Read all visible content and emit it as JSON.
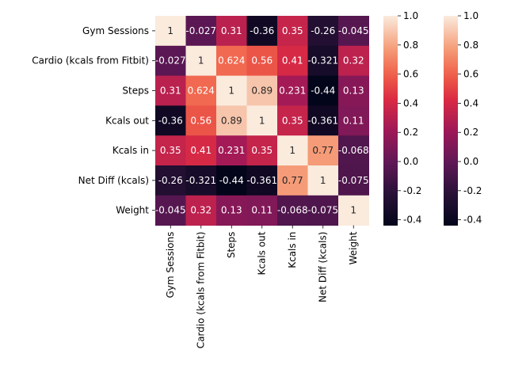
{
  "chart_data": {
    "type": "heatmap",
    "title": "",
    "xlabel": "",
    "ylabel": "",
    "row_labels": [
      "Gym Sessions",
      "Cardio (kcals from Fitbit)",
      "Steps",
      "Kcals out",
      "Kcals in",
      "Net Diff (kcals)",
      "Weight"
    ],
    "col_labels": [
      "Gym Sessions",
      "Cardio (kcals from Fitbit)",
      "Steps",
      "Kcals out",
      "Kcals in",
      "Net Diff (kcals)",
      "Weight"
    ],
    "values": [
      [
        1,
        -0.027,
        0.31,
        -0.36,
        0.35,
        -0.26,
        -0.045
      ],
      [
        -0.027,
        1,
        0.624,
        0.56,
        0.41,
        -0.321,
        0.32
      ],
      [
        0.31,
        0.624,
        1,
        0.89,
        0.231,
        -0.44,
        0.13
      ],
      [
        -0.36,
        0.56,
        0.89,
        1,
        0.35,
        -0.361,
        0.11
      ],
      [
        0.35,
        0.41,
        0.231,
        0.35,
        1,
        0.77,
        -0.068
      ],
      [
        -0.26,
        -0.321,
        -0.44,
        -0.361,
        0.77,
        1,
        -0.075
      ],
      [
        -0.045,
        0.32,
        0.13,
        0.11,
        -0.068,
        -0.075,
        1
      ]
    ],
    "cell_text": [
      [
        "1",
        "-0.027",
        "0.31",
        "-0.36",
        "0.35",
        "-0.26",
        "-0.045"
      ],
      [
        "-0.027",
        "1",
        "0.624",
        "0.56",
        "0.41",
        "-0.321",
        "0.32"
      ],
      [
        "0.31",
        "0.624",
        "1",
        "0.89",
        "0.231",
        "-0.44",
        "0.13"
      ],
      [
        "-0.36",
        "0.56",
        "0.89",
        "1",
        "0.35",
        "-0.361",
        "0.11"
      ],
      [
        "0.35",
        "0.41",
        "0.231",
        "0.35",
        "1",
        "0.77",
        "-0.068"
      ],
      [
        "-0.26",
        "-0.321",
        "-0.44",
        "-0.361",
        "0.77",
        "1",
        "-0.075"
      ],
      [
        "-0.045",
        "0.32",
        "0.13",
        "0.11",
        "-0.068",
        "-0.075",
        "1"
      ]
    ],
    "colorbars": [
      {
        "range": [
          -0.44,
          1.0
        ],
        "ticks": [
          "-0.4",
          "-0.2",
          "0.0",
          "0.2",
          "0.4",
          "0.6",
          "0.8",
          "1.0"
        ]
      },
      {
        "range": [
          -0.44,
          1.0
        ],
        "ticks": [
          "-0.4",
          "-0.2",
          "0.0",
          "0.2",
          "0.4",
          "0.6",
          "0.8",
          "1.0"
        ]
      }
    ],
    "colormap": "rocket",
    "grid": false,
    "legend": "colorbars-right"
  }
}
